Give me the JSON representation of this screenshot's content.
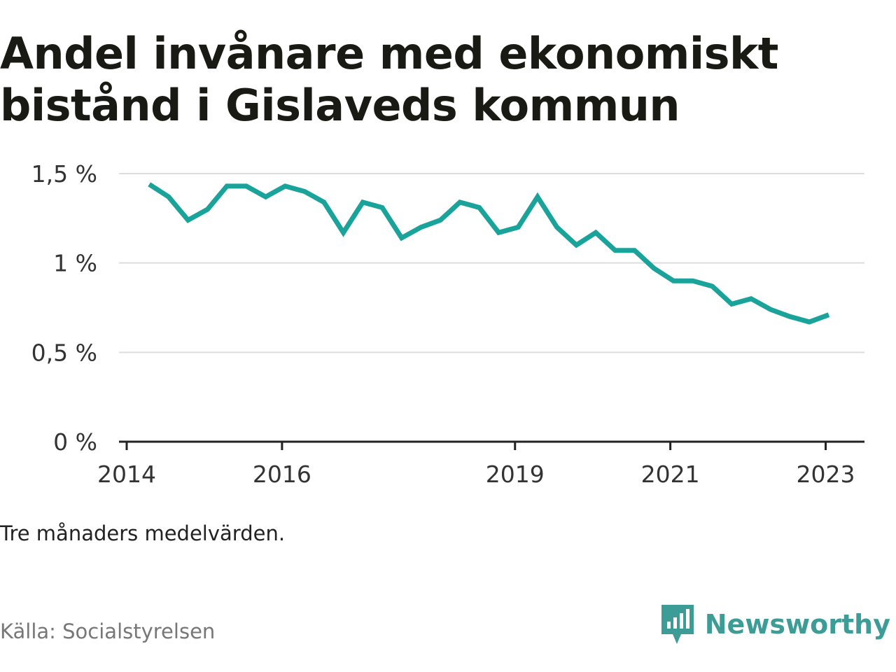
{
  "chart_data": {
    "type": "line",
    "title": "Andel invånare med ekonomiskt bistånd i Gislaveds kommun",
    "note": "Tre månaders medelvärden.",
    "source": "Källa: Socialstyrelsen",
    "brand": "Newsworthy",
    "line_color": "#1aa39a",
    "grid": true,
    "ylim": [
      0,
      1.5
    ],
    "y_ticks": [
      {
        "value": 0,
        "label": "0 %"
      },
      {
        "value": 0.5,
        "label": "0,5 %"
      },
      {
        "value": 1,
        "label": "1 %"
      },
      {
        "value": 1.5,
        "label": "1,5 %"
      }
    ],
    "xlim": [
      2014.0,
      2023.5
    ],
    "x_ticks": [
      {
        "value": 2014,
        "label": "2014"
      },
      {
        "value": 2016,
        "label": "2016"
      },
      {
        "value": 2019,
        "label": "2019"
      },
      {
        "value": 2021,
        "label": "2021"
      },
      {
        "value": 2023,
        "label": "2023"
      }
    ],
    "series": [
      {
        "x": [
          2014.29,
          2014.54,
          2014.79,
          2015.04,
          2015.29,
          2015.54,
          2015.79,
          2016.04,
          2016.29,
          2016.54,
          2016.79,
          2017.04,
          2017.29,
          2017.54,
          2017.79,
          2018.04,
          2018.29,
          2018.54,
          2018.79,
          2019.04,
          2019.29,
          2019.54,
          2019.79,
          2020.04,
          2020.29,
          2020.54,
          2020.79,
          2021.04,
          2021.29,
          2021.54,
          2021.79,
          2022.04,
          2022.29,
          2022.54,
          2022.79,
          2023.04
        ],
        "y": [
          1.44,
          1.37,
          1.24,
          1.3,
          1.43,
          1.43,
          1.37,
          1.43,
          1.4,
          1.34,
          1.17,
          1.34,
          1.31,
          1.14,
          1.2,
          1.24,
          1.34,
          1.31,
          1.17,
          1.2,
          1.37,
          1.2,
          1.1,
          1.17,
          1.07,
          1.07,
          0.97,
          0.9,
          0.9,
          0.87,
          0.77,
          0.8,
          0.74,
          0.7,
          0.67,
          0.71
        ]
      }
    ]
  }
}
